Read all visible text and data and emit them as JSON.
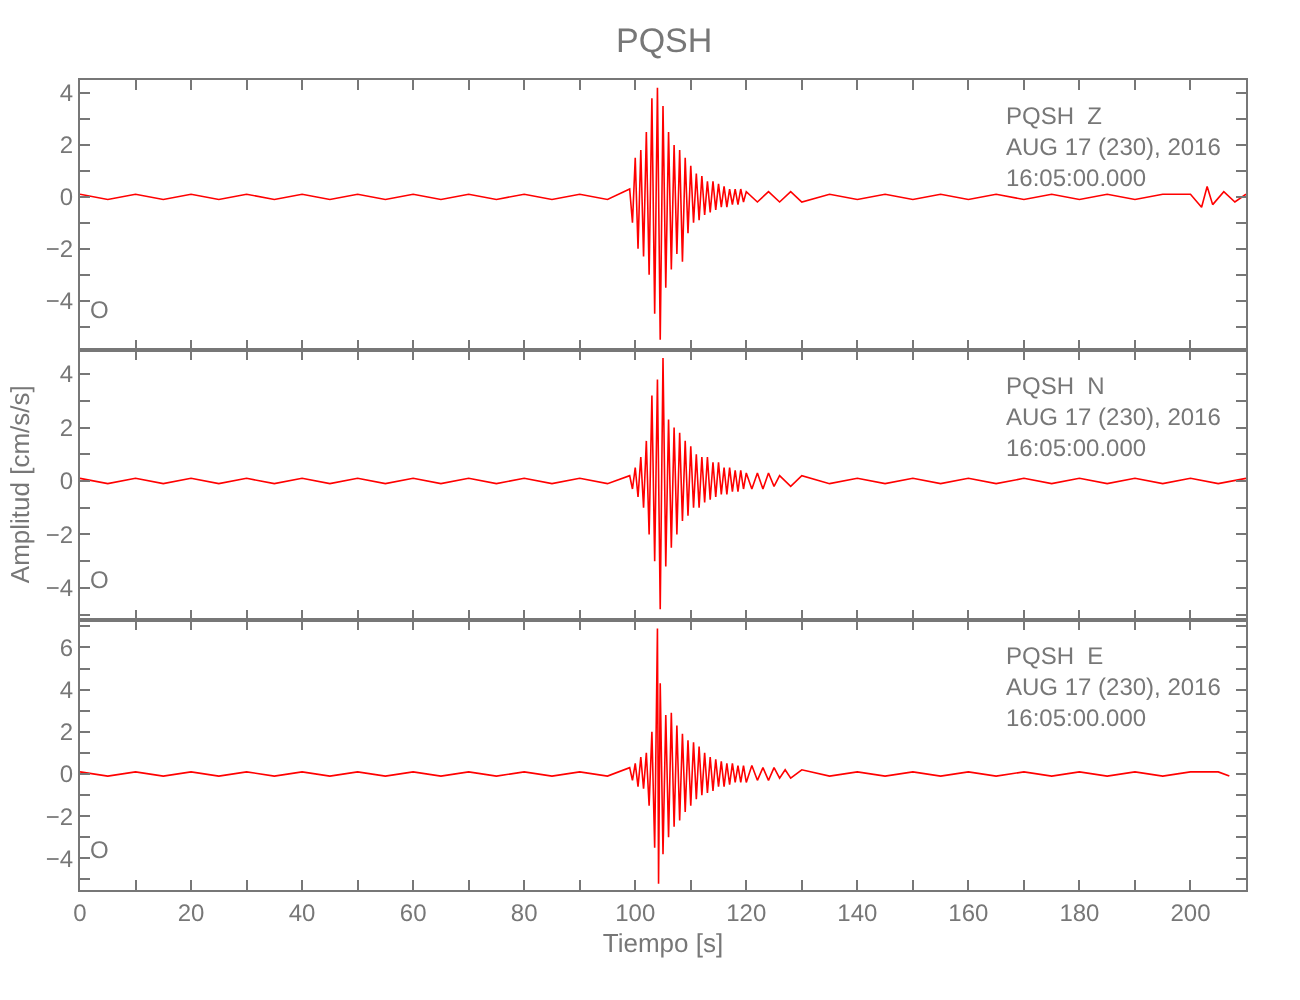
{
  "chart_data": [
    {
      "type": "line",
      "title": "PQSH",
      "annotations": [
        "PQSH  Z\nAUG 17 (230), 2016\n16:05:00.000",
        "O"
      ],
      "x": [
        0,
        5,
        10,
        15,
        20,
        25,
        30,
        35,
        40,
        45,
        50,
        55,
        60,
        65,
        70,
        75,
        80,
        85,
        90,
        95,
        99,
        99.5,
        100,
        100.5,
        101,
        101.5,
        102,
        102.5,
        103,
        103.5,
        104,
        104.5,
        105,
        105.5,
        106,
        106.5,
        107,
        107.5,
        108,
        108.5,
        109,
        109.5,
        110,
        110.5,
        111,
        111.5,
        112,
        112.5,
        113,
        113.5,
        114,
        114.5,
        115,
        115.5,
        116,
        116.5,
        117,
        117.5,
        118,
        118.5,
        119,
        119.5,
        120,
        122,
        124,
        126,
        128,
        130,
        135,
        140,
        145,
        150,
        155,
        160,
        165,
        170,
        175,
        180,
        185,
        190,
        195,
        200,
        202,
        203,
        204,
        206,
        208,
        210
      ],
      "series": [
        {
          "color": "#ff0000",
          "values": [
            0.1,
            -0.1,
            0.1,
            -0.1,
            0.1,
            -0.1,
            0.1,
            -0.1,
            0.1,
            -0.1,
            0.1,
            -0.1,
            0.1,
            -0.1,
            0.1,
            -0.1,
            0.1,
            -0.1,
            0.1,
            -0.1,
            0.3,
            -1.0,
            1.5,
            -2.0,
            1.8,
            -2.3,
            2.5,
            -3.0,
            3.8,
            -4.5,
            4.2,
            -5.5,
            3.5,
            -3.5,
            2.5,
            -2.8,
            2.0,
            -2.2,
            1.8,
            -2.5,
            1.5,
            -1.4,
            1.2,
            -1.0,
            0.9,
            -0.9,
            0.8,
            -0.7,
            0.6,
            -0.6,
            0.6,
            -0.5,
            0.5,
            -0.4,
            0.4,
            -0.4,
            0.3,
            -0.3,
            0.3,
            -0.3,
            0.3,
            -0.2,
            0.2,
            -0.2,
            0.2,
            -0.2,
            0.2,
            -0.2,
            0.1,
            -0.1,
            0.1,
            -0.1,
            0.1,
            -0.1,
            0.1,
            -0.1,
            0.1,
            -0.1,
            0.1,
            -0.1,
            0.1,
            0.1,
            -0.4,
            0.4,
            -0.3,
            0.2,
            -0.2,
            0.1
          ]
        }
      ],
      "xlim": [
        0,
        210
      ],
      "ylim": [
        -5.9,
        4.5
      ],
      "xticks": [
        0,
        {
          "value": 10,
          "label": null
        },
        20,
        {
          "value": 30,
          "label": null
        },
        40,
        {
          "value": 50,
          "label": null
        },
        60,
        {
          "value": 70,
          "label": null
        },
        80,
        {
          "value": 90,
          "label": null
        },
        100,
        {
          "value": 110,
          "label": null
        },
        120,
        {
          "value": 130,
          "label": null
        },
        140,
        {
          "value": 150,
          "label": null
        },
        160,
        {
          "value": 170,
          "label": null
        },
        180,
        {
          "value": 190,
          "label": null
        },
        200
      ],
      "yticks": [
        {
          "value": -5,
          "label": null
        },
        {
          "value": -4,
          "label": "−4"
        },
        {
          "value": -3,
          "label": null
        },
        {
          "value": -2,
          "label": "−2"
        },
        {
          "value": -1,
          "label": null
        },
        0,
        {
          "value": 1,
          "label": null
        },
        2,
        {
          "value": 3,
          "label": null
        },
        4
      ],
      "tick_labels": "y"
    },
    {
      "type": "line",
      "ylabel": "Amplitud [cm/s/s]",
      "annotations": [
        "PQSH  N\nAUG 17 (230), 2016\n16:05:00.000",
        "O"
      ],
      "x": [
        0,
        5,
        10,
        15,
        20,
        25,
        30,
        35,
        40,
        45,
        50,
        55,
        60,
        65,
        70,
        75,
        80,
        85,
        90,
        95,
        99,
        99.5,
        100,
        100.5,
        101,
        101.5,
        102,
        102.5,
        103,
        103.5,
        104,
        104.5,
        105,
        105.5,
        106,
        106.5,
        107,
        107.5,
        108,
        108.5,
        109,
        109.5,
        110,
        110.5,
        111,
        111.5,
        112,
        112.5,
        113,
        113.5,
        114,
        114.5,
        115,
        115.5,
        116,
        116.5,
        117,
        117.5,
        118,
        118.5,
        119,
        119.5,
        120,
        121,
        122,
        123,
        124,
        125,
        126,
        128,
        130,
        135,
        140,
        145,
        150,
        155,
        160,
        165,
        170,
        175,
        180,
        185,
        190,
        195,
        200,
        205,
        210
      ],
      "series": [
        {
          "color": "#ff0000",
          "values": [
            0.1,
            -0.1,
            0.1,
            -0.1,
            0.1,
            -0.1,
            0.1,
            -0.1,
            0.1,
            -0.1,
            0.1,
            -0.1,
            0.1,
            -0.1,
            0.1,
            -0.1,
            0.1,
            -0.1,
            0.1,
            -0.1,
            0.2,
            -0.3,
            0.5,
            -0.6,
            0.9,
            -1.0,
            1.5,
            -2.0,
            3.2,
            -3.0,
            3.8,
            -4.8,
            4.6,
            -3.2,
            2.3,
            -2.5,
            2.0,
            -2.0,
            1.8,
            -1.5,
            1.5,
            -1.3,
            1.3,
            -1.0,
            1.0,
            -1.0,
            0.9,
            -0.8,
            0.9,
            -0.7,
            0.7,
            -0.6,
            0.7,
            -0.5,
            0.5,
            -0.5,
            0.5,
            -0.4,
            0.4,
            -0.4,
            0.4,
            -0.3,
            0.3,
            -0.3,
            0.3,
            -0.3,
            0.3,
            -0.2,
            0.2,
            -0.2,
            0.2,
            -0.1,
            0.1,
            -0.1,
            0.1,
            -0.1,
            0.1,
            -0.1,
            0.1,
            -0.1,
            0.1,
            -0.1,
            0.1,
            -0.1,
            0.1,
            -0.1,
            0.1
          ]
        }
      ],
      "xlim": [
        0,
        210
      ],
      "ylim": [
        -5.2,
        4.9
      ],
      "xticks": [
        0,
        {
          "value": 10,
          "label": null
        },
        20,
        {
          "value": 30,
          "label": null
        },
        40,
        {
          "value": 50,
          "label": null
        },
        60,
        {
          "value": 70,
          "label": null
        },
        80,
        {
          "value": 90,
          "label": null
        },
        100,
        {
          "value": 110,
          "label": null
        },
        120,
        {
          "value": 130,
          "label": null
        },
        140,
        {
          "value": 150,
          "label": null
        },
        160,
        {
          "value": 170,
          "label": null
        },
        180,
        {
          "value": 190,
          "label": null
        },
        200
      ],
      "yticks": [
        {
          "value": -5,
          "label": null
        },
        {
          "value": -4,
          "label": "−4"
        },
        {
          "value": -3,
          "label": null
        },
        {
          "value": -2,
          "label": "−2"
        },
        {
          "value": -1,
          "label": null
        },
        0,
        {
          "value": 1,
          "label": null
        },
        2,
        {
          "value": 3,
          "label": null
        },
        4
      ],
      "tick_labels": "y"
    },
    {
      "type": "line",
      "xlabel": "Tiempo [s]",
      "annotations": [
        "PQSH  E\nAUG 17 (230), 2016\n16:05:00.000",
        "O"
      ],
      "x": [
        0,
        5,
        10,
        15,
        20,
        25,
        30,
        35,
        40,
        45,
        50,
        55,
        60,
        65,
        70,
        75,
        80,
        85,
        90,
        95,
        99,
        99.5,
        100,
        100.5,
        101,
        101.5,
        102,
        102.5,
        103,
        103.5,
        104,
        104.2,
        104.5,
        105,
        105.5,
        106,
        106.5,
        107,
        107.5,
        108,
        108.5,
        109,
        109.5,
        110,
        110.5,
        111,
        111.5,
        112,
        112.5,
        113,
        113.5,
        114,
        114.5,
        115,
        115.5,
        116,
        116.5,
        117,
        117.5,
        118,
        118.5,
        119,
        119.5,
        120,
        121,
        122,
        123,
        124,
        125,
        126,
        127,
        128,
        130,
        135,
        140,
        145,
        150,
        155,
        160,
        165,
        170,
        175,
        180,
        185,
        190,
        195,
        200,
        205,
        207
      ],
      "series": [
        {
          "color": "#ff0000",
          "values": [
            0.1,
            -0.1,
            0.1,
            -0.1,
            0.1,
            -0.1,
            0.1,
            -0.1,
            0.1,
            -0.1,
            0.1,
            -0.1,
            0.1,
            -0.1,
            0.1,
            -0.1,
            0.1,
            -0.1,
            0.1,
            -0.1,
            0.3,
            -0.3,
            0.5,
            -0.6,
            0.8,
            -0.7,
            1.0,
            -1.5,
            2.0,
            -3.5,
            6.9,
            -5.2,
            4.3,
            -3.8,
            2.8,
            -3.0,
            2.9,
            -2.5,
            2.3,
            -2.2,
            1.9,
            -1.8,
            1.6,
            -1.5,
            1.5,
            -1.2,
            1.3,
            -1.0,
            1.0,
            -0.9,
            0.8,
            -0.8,
            0.7,
            -0.6,
            0.6,
            -0.6,
            0.5,
            -0.5,
            0.5,
            -0.4,
            0.4,
            -0.4,
            0.4,
            -0.4,
            0.4,
            -0.3,
            0.3,
            -0.3,
            0.3,
            -0.2,
            0.2,
            -0.2,
            0.2,
            -0.1,
            0.1,
            -0.1,
            0.1,
            -0.1,
            0.1,
            -0.1,
            0.1,
            -0.1,
            0.1,
            -0.1,
            0.1,
            -0.1,
            0.1,
            0.1,
            -0.1
          ]
        }
      ],
      "xlim": [
        0,
        210
      ],
      "ylim": [
        -5.5,
        7.3
      ],
      "xticks": [
        0,
        {
          "value": 10,
          "label": null
        },
        20,
        {
          "value": 30,
          "label": null
        },
        40,
        {
          "value": 50,
          "label": null
        },
        60,
        {
          "value": 70,
          "label": null
        },
        80,
        {
          "value": 90,
          "label": null
        },
        100,
        {
          "value": 110,
          "label": null
        },
        120,
        {
          "value": 130,
          "label": null
        },
        140,
        {
          "value": 150,
          "label": null
        },
        160,
        {
          "value": 170,
          "label": null
        },
        180,
        {
          "value": 190,
          "label": null
        },
        200
      ],
      "yticks": [
        {
          "value": -5,
          "label": null
        },
        {
          "value": -4,
          "label": "−4"
        },
        {
          "value": -3,
          "label": null
        },
        {
          "value": -2,
          "label": "−2"
        },
        {
          "value": -1,
          "label": null
        },
        0,
        {
          "value": 1,
          "label": null
        },
        2,
        {
          "value": 3,
          "label": null
        },
        4,
        {
          "value": 5,
          "label": null
        },
        6,
        {
          "value": 7,
          "label": null
        }
      ]
    }
  ]
}
